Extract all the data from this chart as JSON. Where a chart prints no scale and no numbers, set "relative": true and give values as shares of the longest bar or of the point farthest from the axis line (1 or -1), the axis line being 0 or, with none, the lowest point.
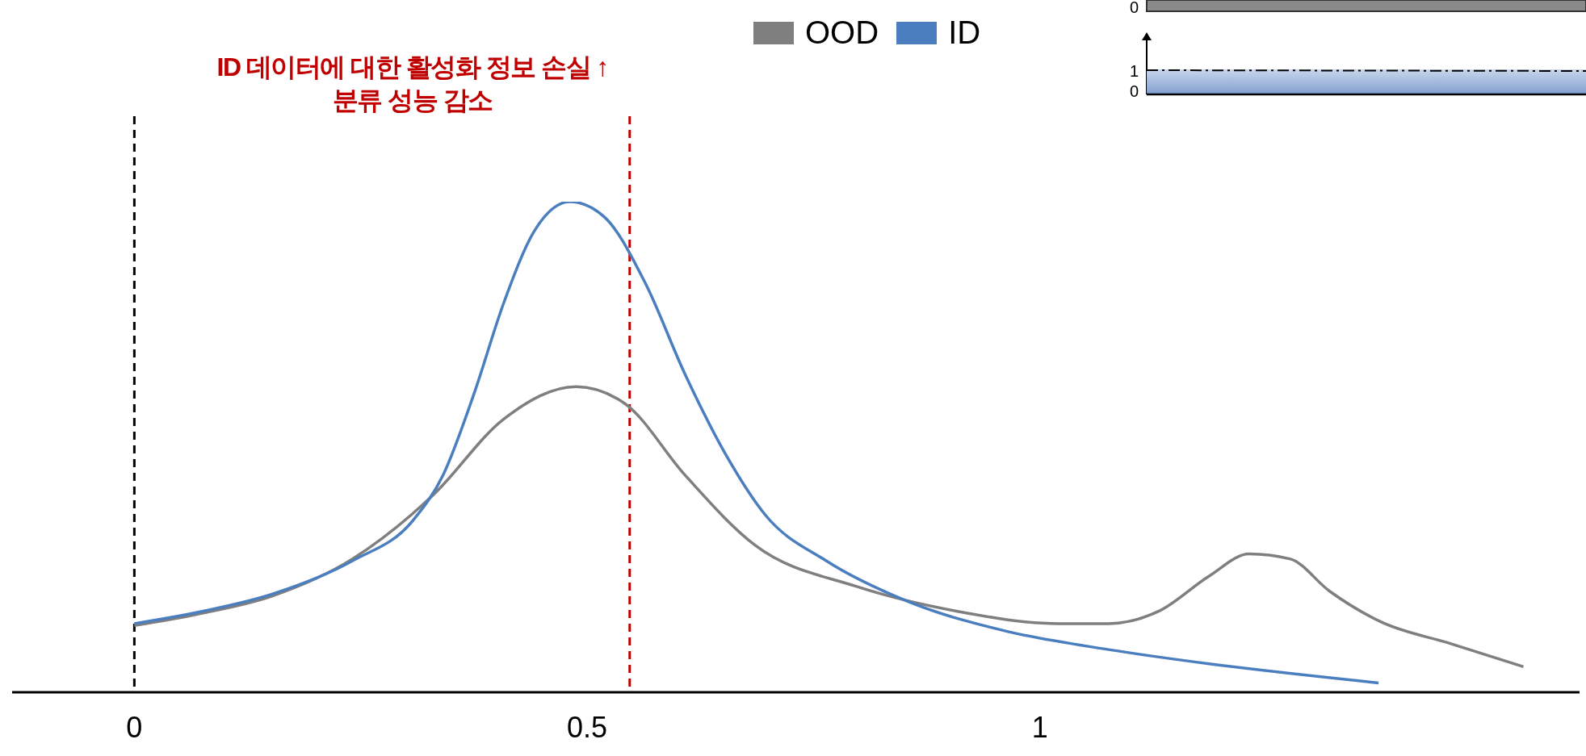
{
  "chart_data": {
    "type": "line",
    "relative": true,
    "xlim": [
      -0.135,
      1.596
    ],
    "xticks": [
      0,
      0.5,
      1
    ],
    "legend": "top",
    "marker": "none",
    "line_style": "solid",
    "series": [
      {
        "name": "OOD",
        "color": "#7f7f7f",
        "x": [
          0,
          0.075,
          0.152,
          0.241,
          0.33,
          0.408,
          0.488,
          0.542,
          0.608,
          0.686,
          0.797,
          0.909,
          1.02,
          1.076,
          1.131,
          1.187,
          1.231,
          1.276,
          1.32,
          1.376,
          1.454,
          1.534
        ],
        "values": [
          0.136,
          0.161,
          0.196,
          0.272,
          0.402,
          0.557,
          0.623,
          0.588,
          0.443,
          0.299,
          0.216,
          0.165,
          0.14,
          0.14,
          0.165,
          0.237,
          0.282,
          0.272,
          0.206,
          0.144,
          0.099,
          0.052
        ]
      },
      {
        "name": "ID",
        "color": "#4a7ebf",
        "x": [
          0,
          0.075,
          0.152,
          0.241,
          0.308,
          0.341,
          0.375,
          0.408,
          0.441,
          0.481,
          0.519,
          0.564,
          0.608,
          0.653,
          0.697,
          0.764,
          0.853,
          0.964,
          1.076,
          1.187,
          1.374
        ],
        "values": [
          0.14,
          0.165,
          0.2,
          0.268,
          0.351,
          0.443,
          0.608,
          0.794,
          0.938,
          1.0,
          0.969,
          0.835,
          0.649,
          0.485,
          0.361,
          0.268,
          0.186,
          0.124,
          0.087,
          0.058,
          0.019
        ]
      }
    ],
    "ref_lines": [
      {
        "axis": "x",
        "value": 0,
        "color": "#000000",
        "line_style": "dashed"
      },
      {
        "axis": "x",
        "value": 0.547,
        "color": "#c00000",
        "line_style": "dashed",
        "label": "ID 데이터에 대한 활성화 정보 손실 ↑\n분류 성능 감소"
      }
    ],
    "annotations": [
      "0",
      "1",
      "0"
    ]
  }
}
